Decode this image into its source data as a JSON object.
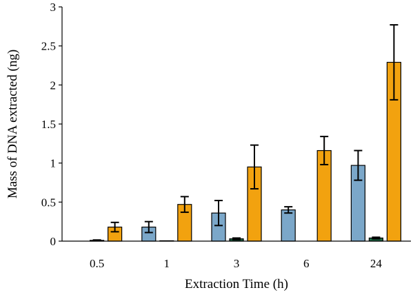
{
  "chart_data": {
    "type": "bar",
    "title": "",
    "xlabel": "Extraction Time (h)",
    "ylabel": "Mass of DNA extracted (ng)",
    "categories": [
      "0.5",
      "1",
      "3",
      "6",
      "24"
    ],
    "ylim": [
      0,
      3
    ],
    "yticks": [
      "0",
      "0.5",
      "1",
      "1.5",
      "2",
      "2.5",
      "3"
    ],
    "grid": false,
    "legend": "none",
    "series": [
      {
        "color": "#7ba7c9",
        "values": [
          0.0,
          0.18,
          0.36,
          0.4,
          0.97
        ],
        "errors": [
          0.0,
          0.07,
          0.16,
          0.04,
          0.19
        ]
      },
      {
        "color": "#1e6b47",
        "values": [
          0.01,
          0.005,
          0.03,
          0.0,
          0.04
        ],
        "errors": [
          0.005,
          0.003,
          0.01,
          0.0,
          0.01
        ]
      },
      {
        "color": "#f2a20f",
        "values": [
          0.18,
          0.47,
          0.95,
          1.16,
          2.29
        ],
        "errors": [
          0.06,
          0.1,
          0.28,
          0.18,
          0.48
        ]
      }
    ]
  }
}
